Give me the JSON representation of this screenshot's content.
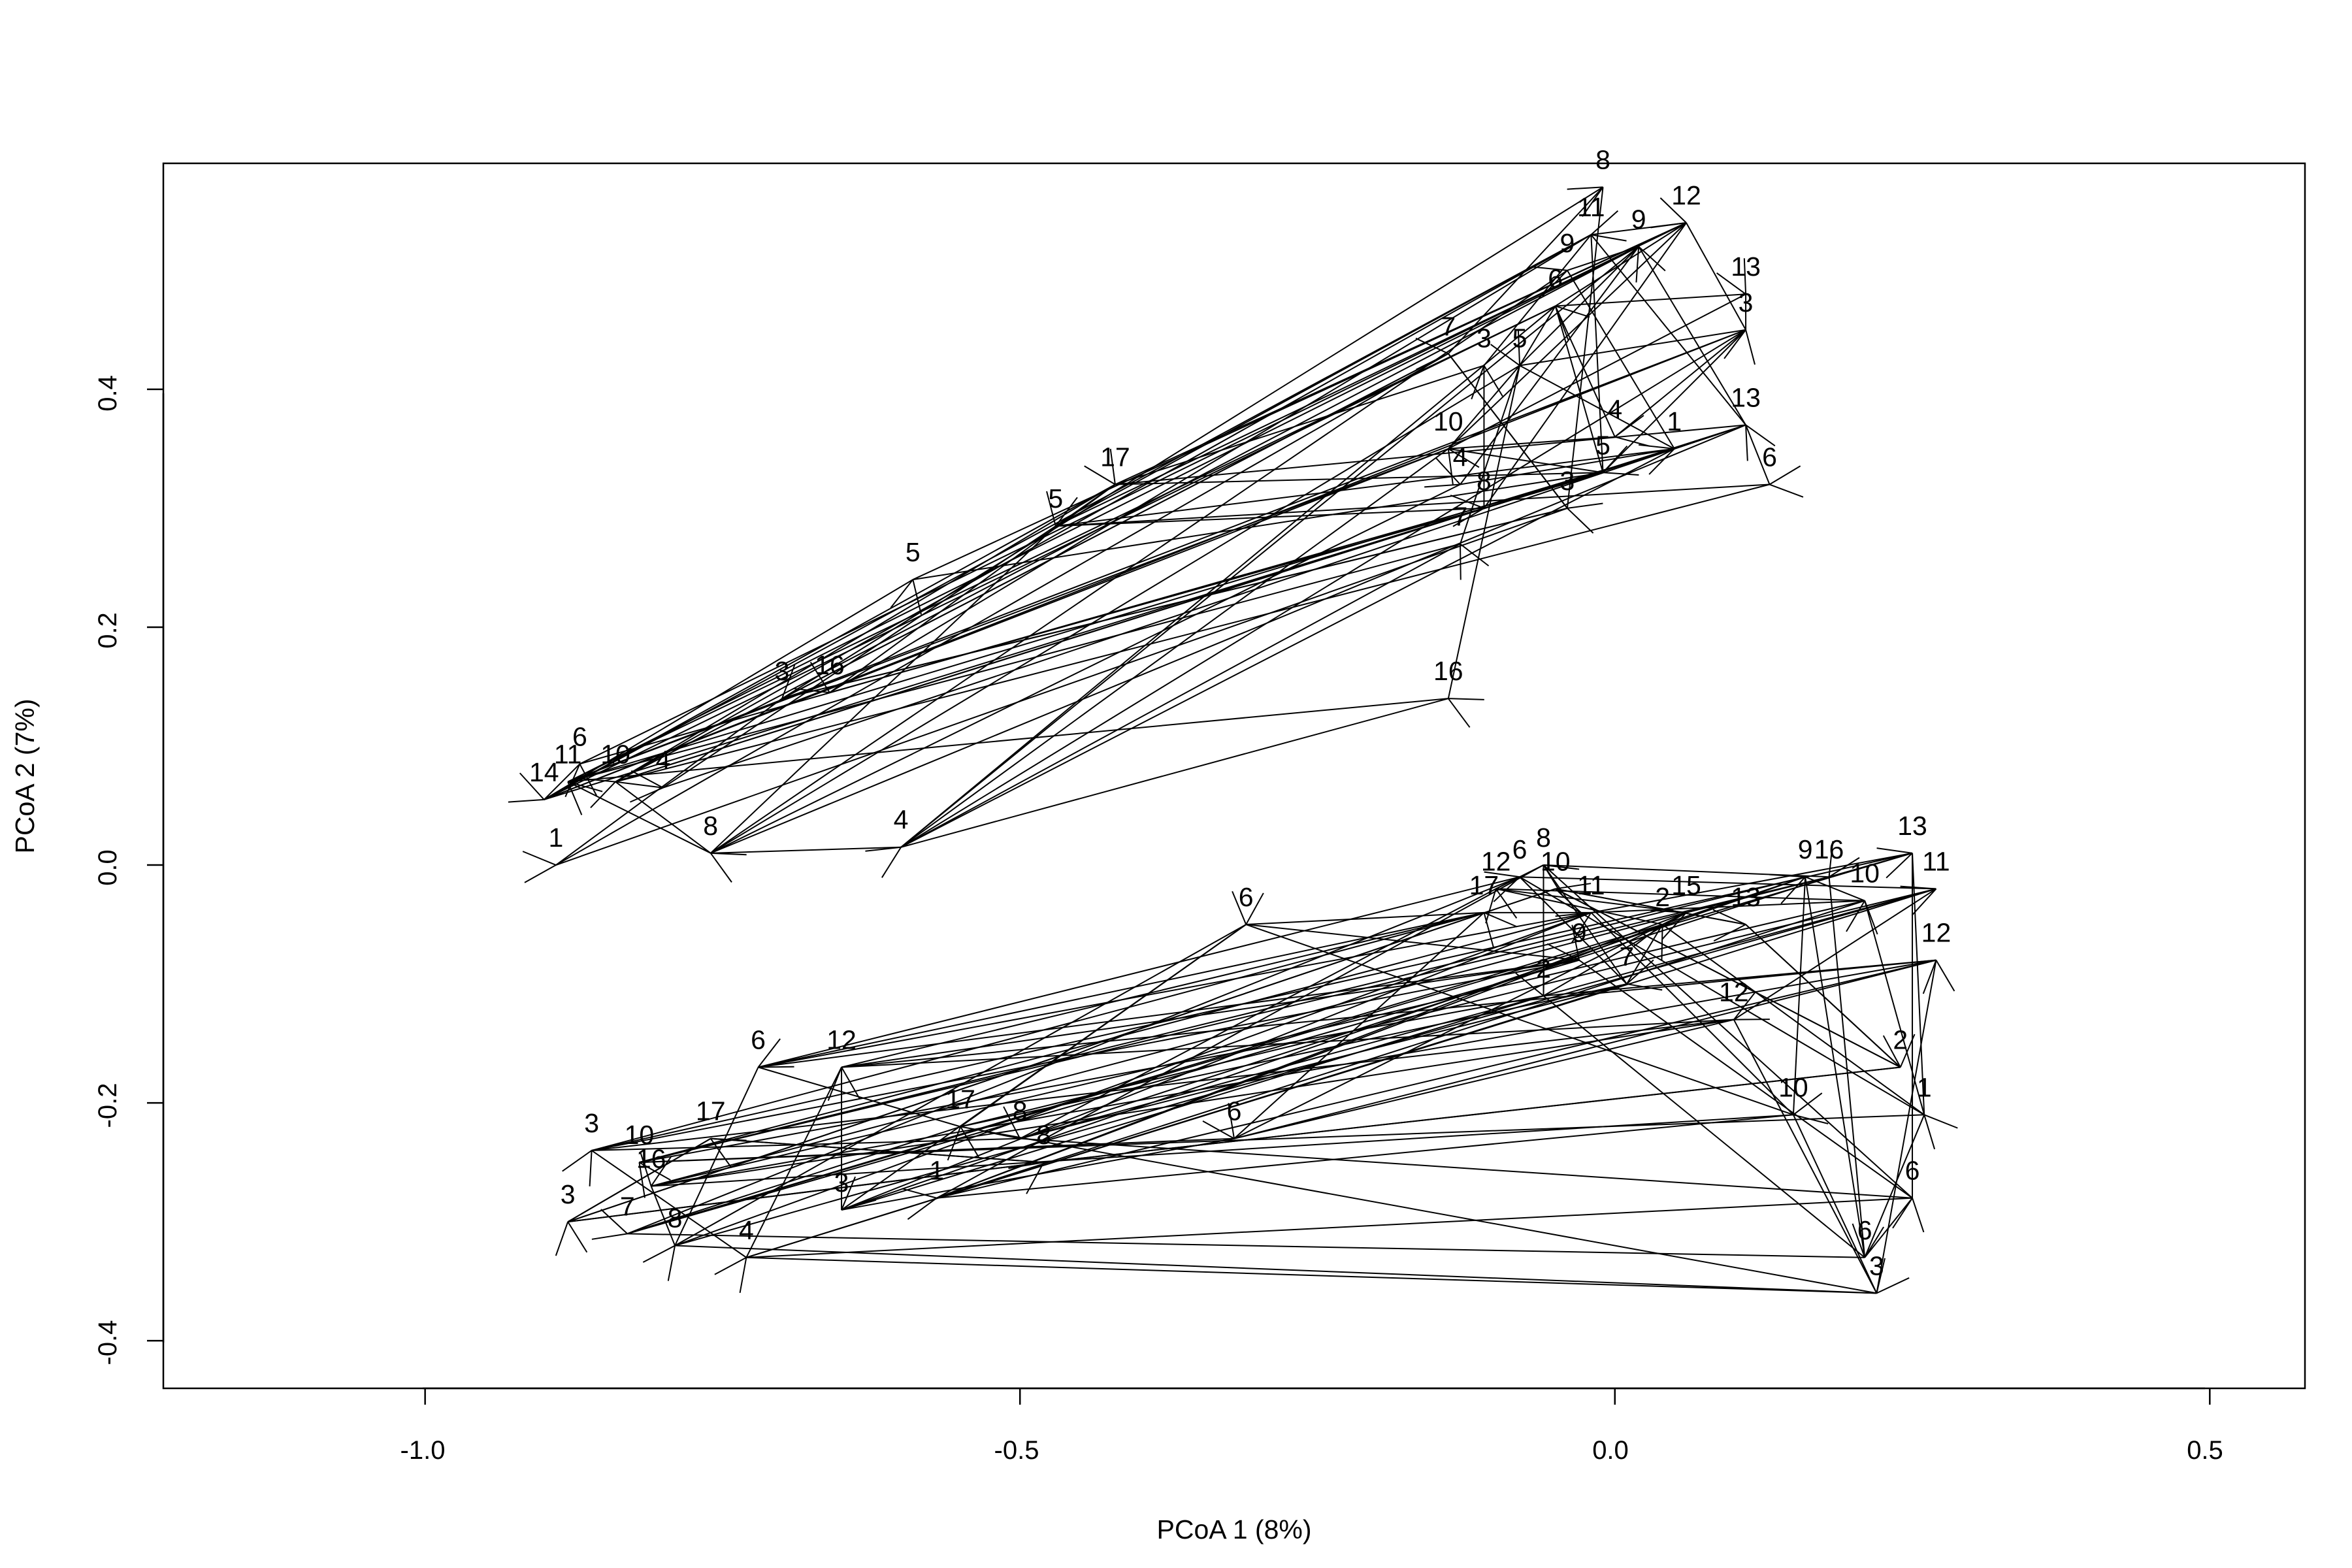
{
  "chart_data": {
    "type": "scatter",
    "title": "",
    "xlabel": "PCoA 1 (8%)",
    "ylabel": "PCoA 2 (7%)",
    "xlim": [
      -1.22,
      0.58
    ],
    "ylim": [
      -0.44,
      0.59
    ],
    "xticks": [
      "-1.0",
      "-0.5",
      "0.0",
      "0.5"
    ],
    "yticks": [
      "-0.4",
      "-0.2",
      "0.0",
      "0.2",
      "0.4"
    ],
    "grid": false,
    "legend": "none",
    "line_color": "#000000",
    "groups": [
      {
        "points": [
          {
            "label": "1",
            "x": -0.89,
            "y": 0.0
          },
          {
            "label": "14",
            "x": -0.9,
            "y": 0.055
          },
          {
            "label": "11",
            "x": -0.88,
            "y": 0.07
          },
          {
            "label": "6",
            "x": -0.87,
            "y": 0.085
          },
          {
            "label": "10",
            "x": -0.84,
            "y": 0.07
          },
          {
            "label": "4",
            "x": -0.8,
            "y": 0.065
          },
          {
            "label": "8",
            "x": -0.76,
            "y": 0.01
          },
          {
            "label": "3",
            "x": -0.7,
            "y": 0.14
          },
          {
            "label": "16",
            "x": -0.66,
            "y": 0.145
          },
          {
            "label": "4",
            "x": -0.6,
            "y": 0.015
          },
          {
            "label": "5",
            "x": -0.59,
            "y": 0.24
          },
          {
            "label": "5",
            "x": -0.47,
            "y": 0.285
          },
          {
            "label": "17",
            "x": -0.42,
            "y": 0.32
          },
          {
            "label": "16",
            "x": -0.14,
            "y": 0.14
          },
          {
            "label": "7",
            "x": -0.14,
            "y": 0.43
          },
          {
            "label": "3",
            "x": -0.11,
            "y": 0.42
          },
          {
            "label": "5",
            "x": -0.08,
            "y": 0.42
          },
          {
            "label": "10",
            "x": -0.14,
            "y": 0.35
          },
          {
            "label": "4",
            "x": -0.13,
            "y": 0.32
          },
          {
            "label": "8",
            "x": -0.11,
            "y": 0.3
          },
          {
            "label": "7",
            "x": -0.13,
            "y": 0.27
          },
          {
            "label": "3",
            "x": -0.04,
            "y": 0.3
          },
          {
            "label": "5",
            "x": -0.01,
            "y": 0.33
          },
          {
            "label": "4",
            "x": 0.0,
            "y": 0.36
          },
          {
            "label": "6",
            "x": -0.05,
            "y": 0.47
          },
          {
            "label": "9",
            "x": -0.04,
            "y": 0.5
          },
          {
            "label": "11",
            "x": -0.02,
            "y": 0.53
          },
          {
            "label": "9",
            "x": 0.02,
            "y": 0.52
          },
          {
            "label": "8",
            "x": -0.01,
            "y": 0.57
          },
          {
            "label": "12",
            "x": 0.06,
            "y": 0.54
          },
          {
            "label": "13",
            "x": 0.11,
            "y": 0.48
          },
          {
            "label": "3",
            "x": 0.11,
            "y": 0.45
          },
          {
            "label": "13",
            "x": 0.11,
            "y": 0.37
          },
          {
            "label": "6",
            "x": 0.13,
            "y": 0.32
          },
          {
            "label": "1",
            "x": 0.05,
            "y": 0.35
          }
        ]
      },
      {
        "points": [
          {
            "label": "3",
            "x": -0.88,
            "y": -0.3
          },
          {
            "label": "7",
            "x": -0.83,
            "y": -0.31
          },
          {
            "label": "3",
            "x": -0.86,
            "y": -0.24
          },
          {
            "label": "10",
            "x": -0.82,
            "y": -0.25
          },
          {
            "label": "16",
            "x": -0.81,
            "y": -0.27
          },
          {
            "label": "8",
            "x": -0.79,
            "y": -0.32
          },
          {
            "label": "4",
            "x": -0.73,
            "y": -0.33
          },
          {
            "label": "17",
            "x": -0.76,
            "y": -0.23
          },
          {
            "label": "6",
            "x": -0.72,
            "y": -0.17
          },
          {
            "label": "12",
            "x": -0.65,
            "y": -0.17
          },
          {
            "label": "3",
            "x": -0.65,
            "y": -0.29
          },
          {
            "label": "1",
            "x": -0.57,
            "y": -0.28
          },
          {
            "label": "17",
            "x": -0.55,
            "y": -0.22
          },
          {
            "label": "8",
            "x": -0.5,
            "y": -0.23
          },
          {
            "label": "8",
            "x": -0.48,
            "y": -0.25
          },
          {
            "label": "6",
            "x": -0.31,
            "y": -0.05
          },
          {
            "label": "6",
            "x": -0.32,
            "y": -0.23
          },
          {
            "label": "17",
            "x": -0.11,
            "y": -0.04
          },
          {
            "label": "12",
            "x": -0.1,
            "y": -0.02
          },
          {
            "label": "6",
            "x": -0.08,
            "y": -0.01
          },
          {
            "label": "8",
            "x": -0.06,
            "y": 0.0
          },
          {
            "label": "10",
            "x": -0.05,
            "y": -0.02
          },
          {
            "label": "11",
            "x": -0.02,
            "y": -0.04
          },
          {
            "label": "2",
            "x": -0.06,
            "y": -0.11
          },
          {
            "label": "9",
            "x": -0.03,
            "y": -0.08
          },
          {
            "label": "7",
            "x": 0.01,
            "y": -0.1
          },
          {
            "label": "2",
            "x": 0.04,
            "y": -0.05
          },
          {
            "label": "15",
            "x": 0.06,
            "y": -0.04
          },
          {
            "label": "13",
            "x": 0.11,
            "y": -0.05
          },
          {
            "label": "9",
            "x": 0.16,
            "y": -0.01
          },
          {
            "label": "16",
            "x": 0.18,
            "y": -0.01
          },
          {
            "label": "13",
            "x": 0.25,
            "y": 0.01
          },
          {
            "label": "11",
            "x": 0.27,
            "y": -0.02
          },
          {
            "label": "10",
            "x": 0.21,
            "y": -0.03
          },
          {
            "label": "12",
            "x": 0.27,
            "y": -0.08
          },
          {
            "label": "2",
            "x": 0.24,
            "y": -0.17
          },
          {
            "label": "1",
            "x": 0.26,
            "y": -0.21
          },
          {
            "label": "6",
            "x": 0.25,
            "y": -0.28
          },
          {
            "label": "6",
            "x": 0.21,
            "y": -0.33
          },
          {
            "label": "3",
            "x": 0.22,
            "y": -0.36
          },
          {
            "label": "10",
            "x": 0.15,
            "y": -0.21
          },
          {
            "label": "12",
            "x": 0.1,
            "y": -0.13
          }
        ]
      }
    ]
  }
}
